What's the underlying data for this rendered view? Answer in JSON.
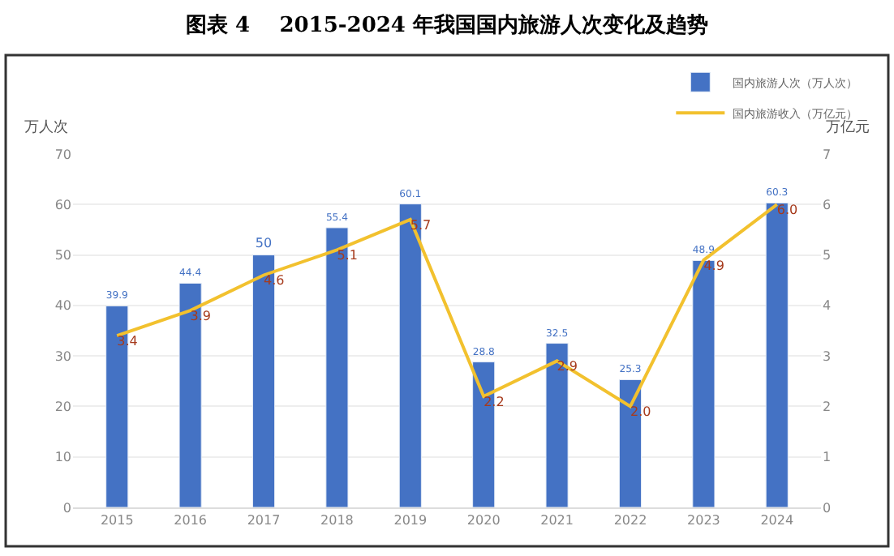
{
  "chart_data": {
    "type": "bar",
    "title": "图表 4    2015-2024 年我国国内旅游人次变化及趋势",
    "ylabel": "万人次",
    "y2label": "万亿元",
    "categories": [
      "2015",
      "2016",
      "2017",
      "2018",
      "2019",
      "2020",
      "2021",
      "2022",
      "2023",
      "2024"
    ],
    "series": [
      {
        "name": "国内旅游人次（万人次）",
        "color": "#4472c4",
        "values": [
          39.9,
          44.4,
          50,
          55.4,
          60.1,
          28.8,
          32.5,
          25.3,
          48.9,
          60.3
        ],
        "data_labels": true
      },
      {
        "name": "国内旅游收入（万亿元）",
        "type": "line",
        "axis": "y2",
        "color": "#f2c12e",
        "values": [
          3.4,
          3.9,
          4.6,
          5.1,
          5.7,
          2.2,
          2.9,
          2.0,
          4.9,
          6.0
        ],
        "value_labels": [
          "3.4",
          "3.9",
          "4.6",
          "5.1",
          "5.7",
          "2.2",
          "2.9",
          "2.0",
          "4.9",
          "6.0"
        ]
      }
    ],
    "ylim": [
      0,
      70
    ],
    "yticks": [
      0,
      10,
      20,
      30,
      40,
      50,
      60,
      70
    ],
    "y2lim": [
      0,
      7
    ],
    "y2ticks": [
      0,
      1,
      2,
      3,
      4,
      5,
      6,
      7
    ],
    "grid": "y",
    "legend": "top right",
    "marker": "none"
  }
}
